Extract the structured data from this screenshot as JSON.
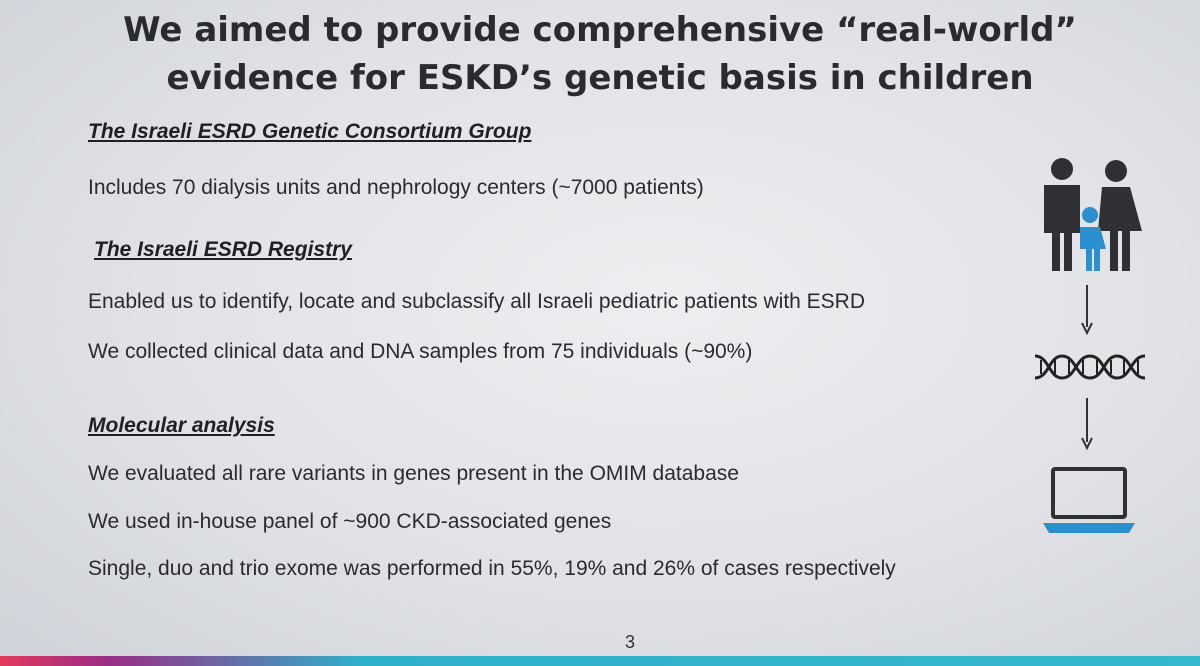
{
  "slide": {
    "title_line1": "We aimed to provide comprehensive “real-world”",
    "title_line2": "evidence for ESKD’s genetic basis in children",
    "sections": [
      {
        "heading": "The Israeli ESRD Genetic Consortium Group",
        "lines": [
          "Includes 70 dialysis units and nephrology centers (~7000 patients)"
        ]
      },
      {
        "heading": "The Israeli ESRD Registry",
        "lines": [
          "Enabled us to identify, locate and subclassify all Israeli pediatric patients with ESRD",
          "We collected clinical data and DNA samples from 75 individuals (~90%)"
        ]
      },
      {
        "heading": "Molecular analysis",
        "lines": [
          "We evaluated all rare variants in genes present in the OMIM database",
          "We used in-house panel of ~900 CKD-associated genes",
          "Single, duo and trio exome was performed in 55%, 19% and 26% of cases respectively"
        ]
      }
    ],
    "page_number": "3"
  },
  "icons": {
    "family": "family-icon",
    "dna": "dna-icon",
    "laptop": "laptop-icon",
    "arrow": "arrow-down-icon"
  },
  "colors": {
    "accent_blue": "#2b8fd0",
    "icon_dark": "#2f2f34",
    "bar_pink": "#e23a5c",
    "bar_teal": "#35b7cc"
  }
}
